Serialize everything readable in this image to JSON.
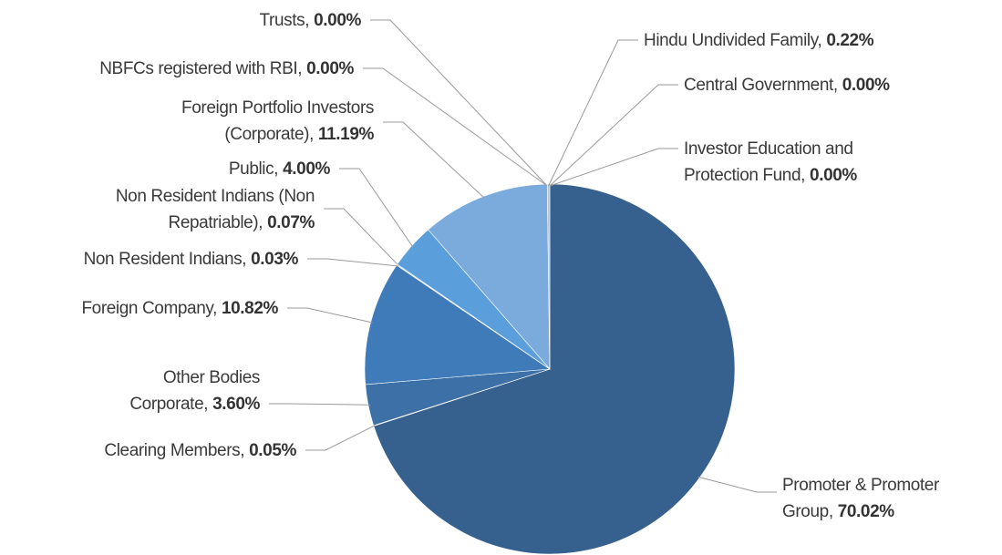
{
  "chart_data": {
    "type": "pie",
    "categories": [
      "Promoter & Promoter Group",
      "Clearing Members",
      "Other Bodies Corporate",
      "Foreign Company",
      "Non Resident Indians",
      "Non Resident Indians (Non Repatriable)",
      "Public",
      "Foreign Portfolio Investors (Corporate)",
      "NBFCs registered with RBI",
      "Trusts",
      "Hindu Undivided Family",
      "Central Government",
      "Investor Education and Protection Fund"
    ],
    "values": [
      70.02,
      0.05,
      3.6,
      10.82,
      0.03,
      0.07,
      4.0,
      11.19,
      0,
      0,
      0.22,
      0,
      0
    ],
    "value_labels": [
      "70.02%",
      "0.05%",
      "3.60%",
      "10.82%",
      "0.03%",
      "0.07%",
      "4.00%",
      "11.19%",
      "0.00%",
      "0.00%",
      "0.22%",
      "0.00%",
      "0.00%"
    ],
    "colors": [
      "#36618f",
      "#3b679a",
      "#3d70a6",
      "#3f7bb9",
      "#4a8ccb",
      "#5294d1",
      "#5a9fdb",
      "#7baadc",
      "#8db5e0",
      "#8db5e0",
      "#a9c6e6",
      "#b7d0ea",
      "#c3d7ee"
    ]
  }
}
